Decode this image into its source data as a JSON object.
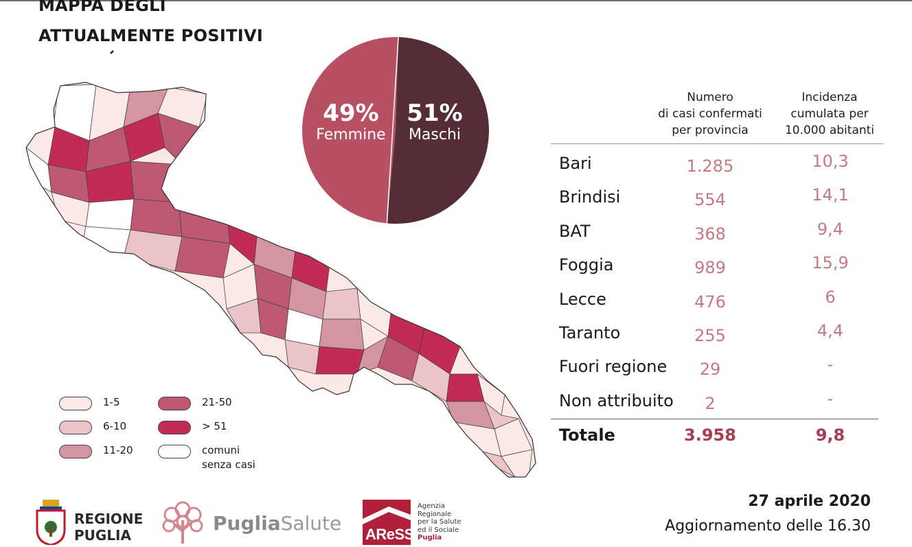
{
  "header": {
    "title_line1": "MAPPA DEGLI",
    "title_line2": "ATTUALMENTE POSITIVI"
  },
  "gender_split": {
    "female_pct": "49%",
    "female_label": "Femmine",
    "male_pct": "51%",
    "male_label": "Maschi",
    "female_color": "#b85064",
    "male_color": "#552d36"
  },
  "table": {
    "col_cases_header": [
      "Numero",
      "di casi confermati",
      "per provincia"
    ],
    "col_incidence_header": [
      "Incidenza",
      "cumulata per",
      "10.000 abitanti"
    ],
    "rows": [
      {
        "name": "Bari",
        "cases": "1.285",
        "incidence": "10,3"
      },
      {
        "name": "Brindisi",
        "cases": "554",
        "incidence": "14,1"
      },
      {
        "name": "BAT",
        "cases": "368",
        "incidence": "9,4"
      },
      {
        "name": "Foggia",
        "cases": "989",
        "incidence": "15,9"
      },
      {
        "name": "Lecce",
        "cases": "476",
        "incidence": "6"
      },
      {
        "name": "Taranto",
        "cases": "255",
        "incidence": "4,4"
      },
      {
        "name": "Fuori regione",
        "cases": "29",
        "incidence": "-"
      },
      {
        "name": "Non attribuito",
        "cases": "2",
        "incidence": "-"
      }
    ],
    "total": {
      "name": "Totale",
      "cases": "3.958",
      "incidence": "9,8"
    }
  },
  "legend": [
    {
      "label": "1-5",
      "color": "#fbe9e7"
    },
    {
      "label": "6-10",
      "color": "#ecc3c6"
    },
    {
      "label": "11-20",
      "color": "#d495a3"
    },
    {
      "label": "21-50",
      "color": "#bd5a72"
    },
    {
      "label": "> 51",
      "color": "#c22b55"
    },
    {
      "label": "comuni",
      "label2": "senza casi",
      "color": "#ffffff"
    }
  ],
  "footer": {
    "date": "27 aprile 2020",
    "update": "Aggiornamento delle 16.30"
  },
  "logos": {
    "regione_line1": "REGIONE",
    "regione_line2": "PUGLIA",
    "puglia_bold": "Puglia",
    "puglia_light": "Salute",
    "aress_abbr": "AReSS",
    "aress_lines": [
      "Agenzia",
      "Regionale",
      "per la Salute",
      "ed il Sociale"
    ],
    "aress_puglia": "Puglia"
  },
  "chart_data": {
    "type": "pie",
    "categories": [
      "Femmine",
      "Maschi"
    ],
    "values": [
      49,
      51
    ],
    "title": ""
  }
}
